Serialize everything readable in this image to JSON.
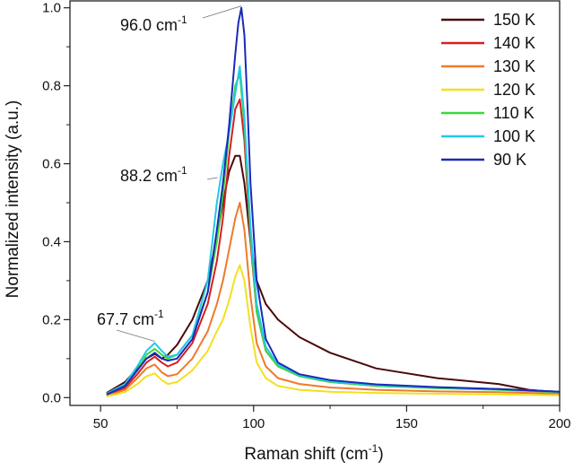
{
  "chart_data": {
    "type": "line",
    "xlabel": "Raman shift (cm",
    "xlabel_sup": "-1",
    "xlabel_end": ")",
    "ylabel": "Normalized intensity (a.u.)",
    "xlim": [
      40,
      200
    ],
    "ylim": [
      -0.02,
      1.02
    ],
    "xticks": [
      50,
      100,
      150,
      200
    ],
    "yticks": [
      0.0,
      0.2,
      0.4,
      0.6,
      0.8,
      1.0
    ],
    "ytick_labels": [
      "0.0",
      "0.2",
      "0.4",
      "0.6",
      "0.8",
      "1.0"
    ],
    "grid": false,
    "legend_position": "top-right",
    "annotations": [
      {
        "text": "96.0 cm",
        "sup": "-1",
        "x": 96.0,
        "y": 1.0
      },
      {
        "text": "88.2 cm",
        "sup": "-1",
        "x": 88.2,
        "y": 0.56
      },
      {
        "text": "67.7 cm",
        "sup": "-1",
        "x": 67.7,
        "y": 0.14
      }
    ],
    "series": [
      {
        "name": "150 K",
        "color": "#4a0a0a",
        "x": [
          52,
          58,
          62,
          65,
          67.7,
          70,
          72,
          75,
          80,
          85,
          88,
          90,
          92,
          94,
          95.5,
          97,
          99,
          101,
          104,
          108,
          115,
          125,
          140,
          160,
          180,
          190,
          200
        ],
        "y": [
          0.012,
          0.04,
          0.075,
          0.1,
          0.112,
          0.1,
          0.11,
          0.135,
          0.2,
          0.3,
          0.41,
          0.5,
          0.58,
          0.62,
          0.62,
          0.55,
          0.4,
          0.3,
          0.24,
          0.2,
          0.155,
          0.115,
          0.075,
          0.05,
          0.035,
          0.02,
          0.014
        ]
      },
      {
        "name": "140 K",
        "color": "#d42020",
        "x": [
          52,
          58,
          62,
          65,
          67.7,
          70,
          72,
          75,
          80,
          85,
          88,
          90,
          92,
          94,
          95.5,
          97,
          99,
          101,
          104,
          108,
          115,
          125,
          140,
          160,
          180,
          200
        ],
        "y": [
          0.006,
          0.025,
          0.06,
          0.09,
          0.105,
          0.09,
          0.08,
          0.09,
          0.14,
          0.24,
          0.35,
          0.46,
          0.62,
          0.74,
          0.765,
          0.66,
          0.4,
          0.22,
          0.12,
          0.08,
          0.055,
          0.04,
          0.03,
          0.025,
          0.022,
          0.015
        ]
      },
      {
        "name": "130 K",
        "color": "#ee7a2a",
        "x": [
          52,
          58,
          62,
          65,
          67.7,
          70,
          72,
          75,
          80,
          85,
          88,
          90,
          92,
          94,
          95.5,
          97,
          99,
          101,
          104,
          108,
          115,
          125,
          140,
          160,
          180,
          200
        ],
        "y": [
          0.004,
          0.02,
          0.05,
          0.075,
          0.085,
          0.065,
          0.055,
          0.06,
          0.1,
          0.17,
          0.24,
          0.3,
          0.38,
          0.46,
          0.5,
          0.43,
          0.26,
          0.14,
          0.08,
          0.05,
          0.035,
          0.026,
          0.02,
          0.016,
          0.014,
          0.01
        ]
      },
      {
        "name": "120 K",
        "color": "#f2e020",
        "x": [
          52,
          58,
          62,
          65,
          67.7,
          70,
          72,
          75,
          80,
          85,
          88,
          90,
          92,
          94,
          95.5,
          97,
          99,
          101,
          104,
          108,
          115,
          125,
          140,
          160,
          180,
          200
        ],
        "y": [
          0.003,
          0.014,
          0.035,
          0.055,
          0.062,
          0.045,
          0.035,
          0.04,
          0.07,
          0.12,
          0.17,
          0.2,
          0.25,
          0.31,
          0.34,
          0.3,
          0.18,
          0.09,
          0.05,
          0.03,
          0.02,
          0.015,
          0.012,
          0.01,
          0.008,
          0.006
        ]
      },
      {
        "name": "110 K",
        "color": "#3ad83a",
        "x": [
          52,
          58,
          62,
          65,
          67.7,
          70,
          72,
          75,
          80,
          85,
          88,
          90,
          92,
          94,
          95.5,
          97,
          99,
          101,
          104,
          108,
          115,
          125,
          140,
          160,
          180,
          200
        ],
        "y": [
          0.008,
          0.03,
          0.07,
          0.11,
          0.125,
          0.11,
          0.1,
          0.11,
          0.16,
          0.27,
          0.4,
          0.52,
          0.68,
          0.8,
          0.83,
          0.7,
          0.42,
          0.22,
          0.12,
          0.08,
          0.055,
          0.04,
          0.03,
          0.024,
          0.02,
          0.014
        ]
      },
      {
        "name": "100 K",
        "color": "#22c8e8",
        "x": [
          52,
          58,
          62,
          65,
          67.7,
          70,
          72,
          75,
          80,
          85,
          88,
          90,
          92,
          94,
          95.5,
          97,
          99,
          101,
          104,
          108,
          115,
          125,
          140,
          160,
          180,
          200
        ],
        "y": [
          0.01,
          0.035,
          0.08,
          0.12,
          0.14,
          0.12,
          0.105,
          0.11,
          0.16,
          0.3,
          0.5,
          0.6,
          0.68,
          0.78,
          0.85,
          0.72,
          0.44,
          0.24,
          0.13,
          0.085,
          0.058,
          0.042,
          0.032,
          0.026,
          0.022,
          0.015
        ]
      },
      {
        "name": "90 K",
        "color": "#1a2ab8",
        "x": [
          52,
          58,
          62,
          65,
          67.7,
          70,
          72,
          75,
          80,
          85,
          88,
          90,
          92,
          94,
          95,
          96,
          97,
          98,
          99,
          101,
          104,
          108,
          115,
          125,
          140,
          160,
          180,
          200
        ],
        "y": [
          0.008,
          0.03,
          0.07,
          0.1,
          0.115,
          0.1,
          0.095,
          0.1,
          0.15,
          0.27,
          0.43,
          0.55,
          0.7,
          0.88,
          0.96,
          1.0,
          0.93,
          0.75,
          0.55,
          0.3,
          0.15,
          0.09,
          0.06,
          0.045,
          0.034,
          0.027,
          0.022,
          0.015
        ]
      }
    ]
  }
}
